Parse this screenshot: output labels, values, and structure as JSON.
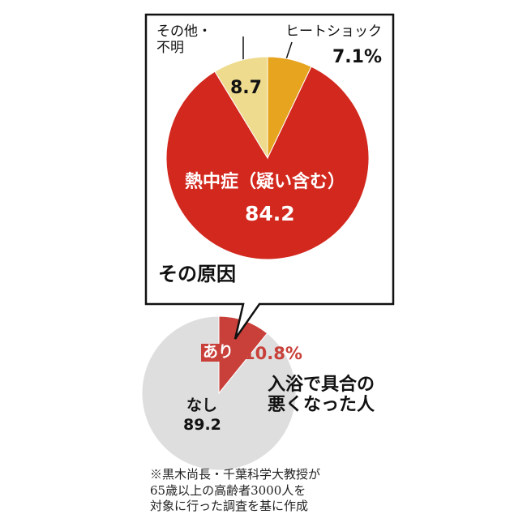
{
  "chart_data": [
    {
      "type": "pie",
      "title": "その原因",
      "categories": [
        "ヒートショック",
        "熱中症（疑い含む）",
        "その他・\n不明"
      ],
      "values": [
        7.1,
        84.2,
        8.7
      ],
      "value_labels": [
        "7.1%",
        "84.2",
        "8.7"
      ],
      "colors": [
        "#e6a41f",
        "#d2281e",
        "#eedb8e"
      ]
    },
    {
      "type": "pie",
      "title": "入浴で具合の\n悪くなった人",
      "categories": [
        "あり",
        "なし"
      ],
      "values": [
        10.8,
        89.2
      ],
      "value_labels": [
        "10.8%",
        "89.2"
      ],
      "colors": [
        "#c9403a",
        "#dedede"
      ]
    }
  ],
  "note": "※黒木尚長・千葉科学大教授が\n65歳以上の高齢者3000人を\n対象に行った調査を基に作成"
}
